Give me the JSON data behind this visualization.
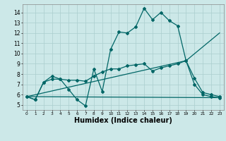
{
  "bg_color": "#cce8e8",
  "grid_color": "#aacece",
  "line_color": "#006666",
  "line_width": 0.9,
  "marker": "D",
  "marker_size": 2.0,
  "xlabel": "Humidex (Indice chaleur)",
  "xlabel_fontsize": 7,
  "ytick_labels": [
    "5",
    "6",
    "7",
    "8",
    "9",
    "10",
    "11",
    "12",
    "13",
    "14"
  ],
  "ytick_vals": [
    5,
    6,
    7,
    8,
    9,
    10,
    11,
    12,
    13,
    14
  ],
  "xtick_vals": [
    0,
    1,
    2,
    3,
    4,
    5,
    6,
    7,
    8,
    9,
    10,
    11,
    12,
    13,
    14,
    15,
    16,
    17,
    18,
    19,
    20,
    21,
    22,
    23
  ],
  "xlim": [
    -0.5,
    23.5
  ],
  "ylim": [
    4.5,
    14.8
  ],
  "series_with_markers": [
    {
      "x": [
        0,
        1,
        2,
        3,
        4,
        5,
        6,
        7,
        8,
        9,
        10,
        11,
        12,
        13,
        14,
        15,
        16,
        17,
        18,
        19,
        20,
        21,
        22,
        23
      ],
      "y": [
        5.8,
        5.5,
        7.2,
        7.8,
        7.5,
        6.5,
        5.5,
        4.9,
        8.5,
        6.3,
        10.4,
        12.1,
        12.0,
        12.6,
        14.4,
        13.3,
        14.0,
        13.2,
        12.7,
        9.3,
        7.0,
        6.0,
        5.8,
        5.7
      ]
    },
    {
      "x": [
        0,
        1,
        2,
        3,
        4,
        5,
        6,
        7,
        8,
        9,
        10,
        11,
        12,
        13,
        14,
        15,
        16,
        17,
        18,
        19,
        20,
        21,
        22,
        23
      ],
      "y": [
        5.8,
        5.5,
        7.2,
        7.5,
        7.5,
        7.4,
        7.4,
        7.3,
        7.8,
        8.2,
        8.5,
        8.5,
        8.8,
        8.9,
        9.0,
        8.3,
        8.6,
        8.8,
        9.0,
        9.3,
        7.6,
        6.2,
        6.0,
        5.8
      ]
    }
  ],
  "series_lines_only": [
    {
      "x": [
        0,
        19,
        23
      ],
      "y": [
        5.8,
        9.3,
        12.0
      ]
    },
    {
      "x": [
        0,
        23
      ],
      "y": [
        5.8,
        5.7
      ]
    }
  ]
}
